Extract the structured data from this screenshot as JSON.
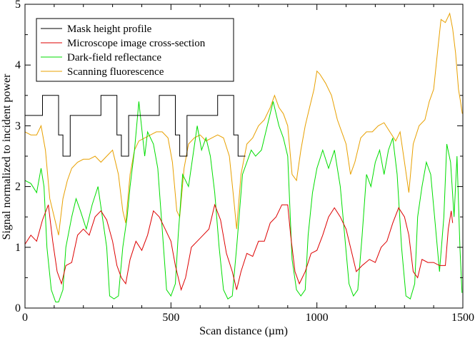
{
  "chart_data": {
    "type": "line",
    "title": "",
    "xlabel": "Scan distance (µm)",
    "ylabel": "Signal normalized to incident power",
    "xlim": [
      0,
      1500
    ],
    "ylim": [
      0,
      5
    ],
    "xticks": [
      0,
      500,
      1000,
      1500
    ],
    "yticks": [
      0,
      1,
      2,
      3,
      4,
      5
    ],
    "grid": false,
    "legend_position": "top-left",
    "series": [
      {
        "name": "Mask height profile",
        "color": "#000000",
        "points": [
          [
            0,
            3.17
          ],
          [
            60,
            3.17
          ],
          [
            60,
            3.5
          ],
          [
            115,
            3.5
          ],
          [
            115,
            2.85
          ],
          [
            130,
            2.85
          ],
          [
            130,
            2.5
          ],
          [
            155,
            2.5
          ],
          [
            155,
            3.17
          ],
          [
            260,
            3.17
          ],
          [
            260,
            3.5
          ],
          [
            315,
            3.5
          ],
          [
            315,
            2.85
          ],
          [
            330,
            2.85
          ],
          [
            330,
            2.5
          ],
          [
            355,
            2.5
          ],
          [
            355,
            3.17
          ],
          [
            460,
            3.17
          ],
          [
            460,
            3.5
          ],
          [
            515,
            3.5
          ],
          [
            515,
            2.85
          ],
          [
            530,
            2.85
          ],
          [
            530,
            2.5
          ],
          [
            555,
            2.5
          ],
          [
            555,
            3.17
          ],
          [
            660,
            3.17
          ],
          [
            660,
            3.5
          ],
          [
            715,
            3.5
          ],
          [
            715,
            2.85
          ],
          [
            730,
            2.85
          ],
          [
            730,
            2.5
          ],
          [
            755,
            2.5
          ]
        ]
      },
      {
        "name": "Microscope image cross-section",
        "color": "#dd0000",
        "points": [
          [
            0,
            1.05
          ],
          [
            20,
            1.2
          ],
          [
            40,
            1.1
          ],
          [
            60,
            1.45
          ],
          [
            80,
            1.7
          ],
          [
            95,
            1.1
          ],
          [
            110,
            0.6
          ],
          [
            125,
            0.4
          ],
          [
            140,
            0.7
          ],
          [
            160,
            0.75
          ],
          [
            180,
            1.2
          ],
          [
            200,
            1.3
          ],
          [
            220,
            1.2
          ],
          [
            240,
            1.5
          ],
          [
            260,
            1.6
          ],
          [
            280,
            1.45
          ],
          [
            300,
            1.1
          ],
          [
            315,
            0.7
          ],
          [
            330,
            0.5
          ],
          [
            345,
            0.4
          ],
          [
            360,
            0.8
          ],
          [
            380,
            1.1
          ],
          [
            400,
            0.95
          ],
          [
            420,
            1.2
          ],
          [
            440,
            1.6
          ],
          [
            460,
            1.5
          ],
          [
            480,
            1.3
          ],
          [
            500,
            1.1
          ],
          [
            515,
            0.7
          ],
          [
            535,
            0.3
          ],
          [
            550,
            0.5
          ],
          [
            570,
            1.0
          ],
          [
            590,
            1.1
          ],
          [
            610,
            1.2
          ],
          [
            630,
            1.3
          ],
          [
            650,
            1.7
          ],
          [
            670,
            1.45
          ],
          [
            690,
            0.9
          ],
          [
            710,
            0.6
          ],
          [
            725,
            0.3
          ],
          [
            740,
            0.6
          ],
          [
            760,
            0.9
          ],
          [
            780,
            0.85
          ],
          [
            800,
            1.1
          ],
          [
            820,
            1.1
          ],
          [
            840,
            1.4
          ],
          [
            860,
            1.5
          ],
          [
            880,
            1.7
          ],
          [
            900,
            1.7
          ],
          [
            910,
            1.2
          ],
          [
            925,
            0.6
          ],
          [
            940,
            0.4
          ],
          [
            960,
            0.6
          ],
          [
            980,
            0.9
          ],
          [
            1000,
            0.95
          ],
          [
            1020,
            1.2
          ],
          [
            1040,
            1.5
          ],
          [
            1060,
            1.65
          ],
          [
            1080,
            1.5
          ],
          [
            1100,
            1.3
          ],
          [
            1120,
            0.9
          ],
          [
            1135,
            0.6
          ],
          [
            1155,
            0.7
          ],
          [
            1180,
            0.8
          ],
          [
            1200,
            0.75
          ],
          [
            1220,
            1.0
          ],
          [
            1240,
            1.1
          ],
          [
            1260,
            1.4
          ],
          [
            1280,
            1.65
          ],
          [
            1300,
            1.5
          ],
          [
            1315,
            1.2
          ],
          [
            1330,
            0.6
          ],
          [
            1345,
            0.5
          ],
          [
            1360,
            0.8
          ],
          [
            1380,
            0.75
          ],
          [
            1400,
            0.75
          ],
          [
            1420,
            0.7
          ],
          [
            1440,
            0.7
          ],
          [
            1450,
            1.3
          ],
          [
            1460,
            1.6
          ],
          [
            1465,
            1.4
          ]
        ]
      },
      {
        "name": "Dark-field reflectance",
        "color": "#00dd00",
        "points": [
          [
            0,
            2.1
          ],
          [
            20,
            2.05
          ],
          [
            40,
            1.9
          ],
          [
            55,
            2.3
          ],
          [
            65,
            2.0
          ],
          [
            75,
            1.0
          ],
          [
            90,
            0.3
          ],
          [
            105,
            0.1
          ],
          [
            115,
            0.1
          ],
          [
            130,
            0.3
          ],
          [
            140,
            1.0
          ],
          [
            160,
            1.5
          ],
          [
            175,
            1.8
          ],
          [
            190,
            1.6
          ],
          [
            210,
            1.3
          ],
          [
            230,
            1.7
          ],
          [
            250,
            2.0
          ],
          [
            265,
            1.5
          ],
          [
            280,
            1.0
          ],
          [
            290,
            0.2
          ],
          [
            305,
            0.15
          ],
          [
            320,
            0.2
          ],
          [
            335,
            1.0
          ],
          [
            350,
            1.5
          ],
          [
            360,
            2.0
          ],
          [
            375,
            2.6
          ],
          [
            390,
            3.4
          ],
          [
            410,
            2.5
          ],
          [
            420,
            2.9
          ],
          [
            440,
            2.7
          ],
          [
            455,
            2.3
          ],
          [
            470,
            1.3
          ],
          [
            485,
            0.3
          ],
          [
            500,
            0.2
          ],
          [
            515,
            0.4
          ],
          [
            525,
            1.2
          ],
          [
            540,
            2.2
          ],
          [
            560,
            2.0
          ],
          [
            575,
            2.5
          ],
          [
            590,
            3.0
          ],
          [
            605,
            2.6
          ],
          [
            620,
            2.8
          ],
          [
            635,
            2.5
          ],
          [
            650,
            1.9
          ],
          [
            665,
            1.0
          ],
          [
            680,
            0.3
          ],
          [
            695,
            0.15
          ],
          [
            710,
            0.2
          ],
          [
            725,
            1.0
          ],
          [
            745,
            2.2
          ],
          [
            760,
            2.4
          ],
          [
            775,
            2.6
          ],
          [
            790,
            2.5
          ],
          [
            810,
            2.6
          ],
          [
            830,
            3.0
          ],
          [
            850,
            3.4
          ],
          [
            870,
            3.0
          ],
          [
            885,
            2.8
          ],
          [
            900,
            2.5
          ],
          [
            915,
            0.8
          ],
          [
            930,
            0.3
          ],
          [
            945,
            0.2
          ],
          [
            960,
            0.3
          ],
          [
            970,
            1.2
          ],
          [
            985,
            1.9
          ],
          [
            1000,
            2.3
          ],
          [
            1020,
            2.6
          ],
          [
            1040,
            2.3
          ],
          [
            1060,
            2.6
          ],
          [
            1080,
            2.0
          ],
          [
            1095,
            1.2
          ],
          [
            1110,
            0.4
          ],
          [
            1125,
            0.2
          ],
          [
            1140,
            0.3
          ],
          [
            1155,
            1.2
          ],
          [
            1170,
            2.2
          ],
          [
            1185,
            2.0
          ],
          [
            1200,
            2.4
          ],
          [
            1215,
            2.6
          ],
          [
            1230,
            2.2
          ],
          [
            1245,
            2.6
          ],
          [
            1260,
            2.8
          ],
          [
            1275,
            2.2
          ],
          [
            1290,
            1.0
          ],
          [
            1305,
            0.2
          ],
          [
            1320,
            0.15
          ],
          [
            1335,
            0.4
          ],
          [
            1345,
            1.5
          ],
          [
            1360,
            2.0
          ],
          [
            1375,
            2.4
          ],
          [
            1390,
            2.2
          ],
          [
            1405,
            1.4
          ],
          [
            1420,
            0.6
          ],
          [
            1435,
            1.5
          ],
          [
            1445,
            2.7
          ],
          [
            1458,
            2.4
          ],
          [
            1470,
            1.5
          ],
          [
            1480,
            2.5
          ],
          [
            1490,
            1.0
          ],
          [
            1497,
            0.25
          ]
        ]
      },
      {
        "name": "Scanning fluorescence",
        "color": "#e8a000",
        "points": [
          [
            0,
            2.9
          ],
          [
            20,
            2.85
          ],
          [
            40,
            2.85
          ],
          [
            55,
            3.0
          ],
          [
            70,
            2.6
          ],
          [
            85,
            1.8
          ],
          [
            100,
            1.5
          ],
          [
            115,
            1.2
          ],
          [
            130,
            1.8
          ],
          [
            145,
            2.1
          ],
          [
            160,
            2.3
          ],
          [
            180,
            2.4
          ],
          [
            200,
            2.45
          ],
          [
            220,
            2.45
          ],
          [
            240,
            2.5
          ],
          [
            260,
            2.4
          ],
          [
            280,
            2.5
          ],
          [
            300,
            2.6
          ],
          [
            320,
            2.2
          ],
          [
            335,
            1.6
          ],
          [
            345,
            1.4
          ],
          [
            360,
            2.2
          ],
          [
            375,
            2.6
          ],
          [
            390,
            2.75
          ],
          [
            410,
            2.8
          ],
          [
            430,
            2.85
          ],
          [
            450,
            2.9
          ],
          [
            470,
            2.9
          ],
          [
            490,
            2.8
          ],
          [
            505,
            2.4
          ],
          [
            520,
            1.6
          ],
          [
            530,
            1.5
          ],
          [
            545,
            2.3
          ],
          [
            560,
            2.7
          ],
          [
            580,
            2.8
          ],
          [
            600,
            2.85
          ],
          [
            620,
            2.75
          ],
          [
            640,
            2.8
          ],
          [
            660,
            2.85
          ],
          [
            680,
            2.8
          ],
          [
            700,
            2.5
          ],
          [
            715,
            1.8
          ],
          [
            725,
            1.3
          ],
          [
            740,
            2.2
          ],
          [
            760,
            2.7
          ],
          [
            780,
            2.8
          ],
          [
            800,
            3.0
          ],
          [
            820,
            3.1
          ],
          [
            840,
            3.3
          ],
          [
            855,
            3.5
          ],
          [
            870,
            3.3
          ],
          [
            885,
            3.2
          ],
          [
            900,
            3.0
          ],
          [
            915,
            2.2
          ],
          [
            930,
            2.1
          ],
          [
            945,
            2.6
          ],
          [
            960,
            3.0
          ],
          [
            975,
            3.3
          ],
          [
            990,
            3.6
          ],
          [
            1000,
            3.9
          ],
          [
            1010,
            3.85
          ],
          [
            1030,
            3.7
          ],
          [
            1050,
            3.5
          ],
          [
            1070,
            3.1
          ],
          [
            1085,
            2.9
          ],
          [
            1100,
            2.7
          ],
          [
            1115,
            2.2
          ],
          [
            1130,
            2.4
          ],
          [
            1150,
            2.8
          ],
          [
            1170,
            2.9
          ],
          [
            1190,
            2.9
          ],
          [
            1210,
            3.0
          ],
          [
            1230,
            3.05
          ],
          [
            1250,
            2.9
          ],
          [
            1270,
            2.75
          ],
          [
            1285,
            2.9
          ],
          [
            1300,
            2.4
          ],
          [
            1315,
            1.9
          ],
          [
            1330,
            2.7
          ],
          [
            1350,
            3.0
          ],
          [
            1370,
            3.1
          ],
          [
            1385,
            3.4
          ],
          [
            1400,
            3.6
          ],
          [
            1415,
            4.3
          ],
          [
            1425,
            4.75
          ],
          [
            1440,
            4.7
          ],
          [
            1455,
            4.85
          ],
          [
            1465,
            4.6
          ],
          [
            1475,
            4.2
          ],
          [
            1485,
            3.6
          ],
          [
            1492,
            3.4
          ],
          [
            1498,
            3.2
          ]
        ]
      }
    ]
  }
}
